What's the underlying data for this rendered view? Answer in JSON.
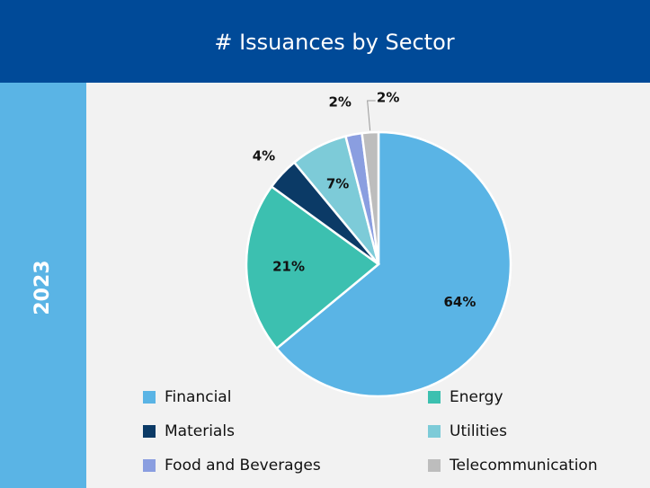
{
  "chart_data": {
    "type": "pie",
    "title": "# Issuances by Sector",
    "period": "2023",
    "categories": [
      "Financial",
      "Energy",
      "Materials",
      "Utilities",
      "Food and Beverages",
      "Telecommunication"
    ],
    "values": [
      64,
      21,
      4,
      7,
      2,
      2
    ],
    "value_labels": [
      "64%",
      "21%",
      "4%",
      "7%",
      "2%",
      "2%"
    ],
    "colors": [
      "#5ab4e5",
      "#3cc0b0",
      "#0b3a66",
      "#7dcbd8",
      "#8a9ee0",
      "#bdbdbd"
    ]
  }
}
